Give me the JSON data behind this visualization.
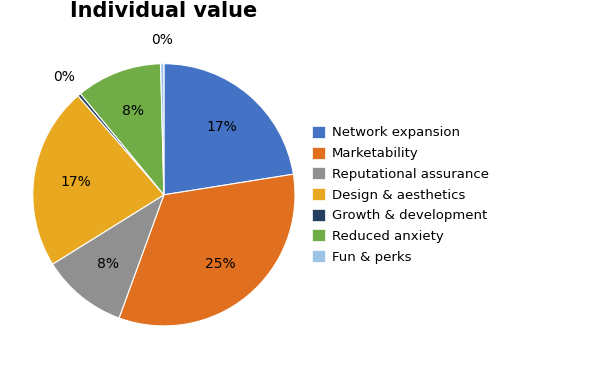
{
  "title": "Individual value",
  "labels": [
    "Network expansion",
    "Marketability",
    "Reputational assurance",
    "Design & aesthetics",
    "Growth & development",
    "Reduced anxiety",
    "Fun & perks"
  ],
  "values": [
    17,
    25,
    8,
    17,
    0.3,
    8,
    0.3
  ],
  "display_pcts": [
    "17%",
    "25%",
    "8%",
    "17%",
    "0%",
    "8%",
    "0%"
  ],
  "colors": [
    "#4472C4",
    "#E07020",
    "#909090",
    "#E8A820",
    "#243F60",
    "#70AD47",
    "#9DC3E6"
  ],
  "title_fontsize": 15,
  "legend_fontsize": 9.5,
  "pct_fontsize": 10,
  "startangle": 90,
  "pct_distance": 0.68
}
